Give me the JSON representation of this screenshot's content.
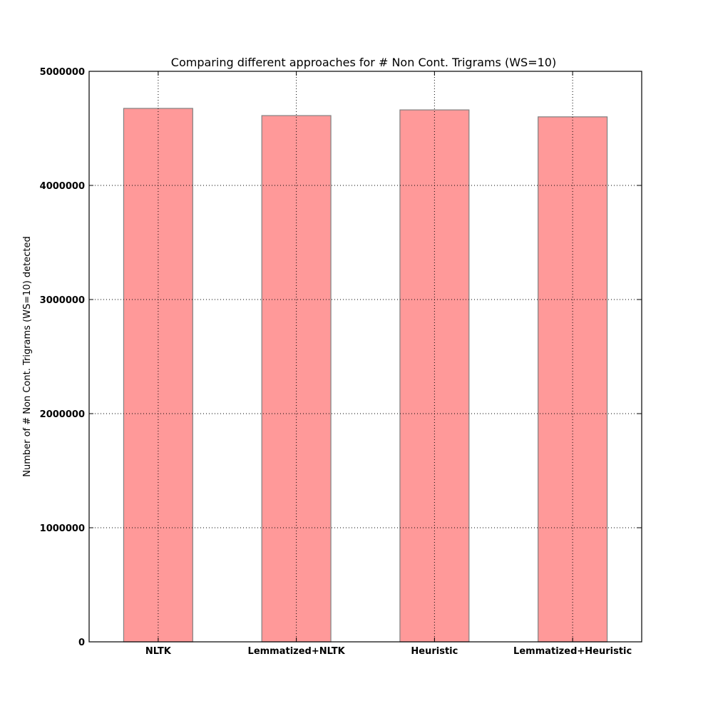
{
  "chart_data": {
    "type": "bar",
    "title": "Comparing different approaches for # Non Cont. Trigrams (WS=10)",
    "xlabel": "",
    "ylabel": "Number of # Non Cont. Trigrams (WS=10) detected",
    "categories": [
      "NLTK",
      "Lemmatized+NLTK",
      "Heuristic",
      "Lemmatized+Heuristic"
    ],
    "values": [
      4675000,
      4612000,
      4662000,
      4601000
    ],
    "ylim": [
      0,
      5000000
    ],
    "yticks": [
      0,
      1000000,
      2000000,
      3000000,
      4000000,
      5000000
    ],
    "ytick_labels": [
      "0",
      "1000000",
      "2000000",
      "3000000",
      "4000000",
      "5000000"
    ],
    "grid": true,
    "bar_color": "#ff9999",
    "bar_edge_color": "#808080"
  }
}
